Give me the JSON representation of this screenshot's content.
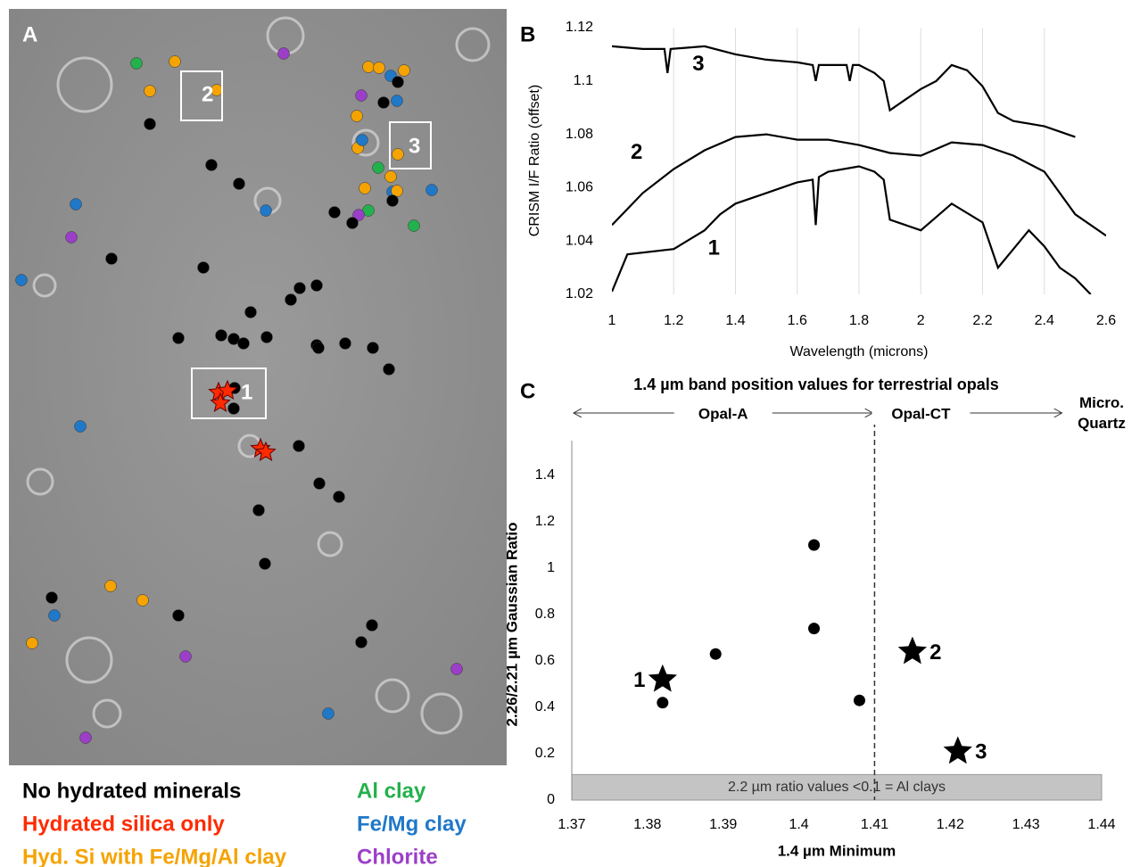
{
  "panel_a": {
    "label": "A",
    "box_labels": [
      "1",
      "2",
      "3"
    ],
    "legend": [
      {
        "label": "No hydrated minerals",
        "color": "#000000"
      },
      {
        "label": "Hydrated silica only",
        "color": "#ff2a00"
      },
      {
        "label": "Hyd. Si with Fe/Mg/Al clay",
        "color": "#f5a300"
      },
      {
        "label": "Al clay",
        "color": "#22b14c"
      },
      {
        "label": "Fe/Mg clay",
        "color": "#1f78c8"
      },
      {
        "label": "Chlorite",
        "color": "#9b3fc8"
      }
    ]
  },
  "chart_data": [
    {
      "type": "line",
      "panel_label": "B",
      "x_label": "Wavelength (microns)",
      "y_label": "CRISM I/F Ratio (offset)",
      "xlim": [
        1,
        2.6
      ],
      "ylim": [
        1.02,
        1.12
      ],
      "xticks": [
        1,
        1.2,
        1.4,
        1.6,
        1.8,
        2,
        2.2,
        2.4,
        2.6
      ],
      "yticks": [
        1.02,
        1.04,
        1.06,
        1.08,
        1.1,
        1.12
      ],
      "grid": "x",
      "series": [
        {
          "name": "1",
          "color": "#000000",
          "label_x": 1.33,
          "label_y": 1.037,
          "x": [
            1.0,
            1.05,
            1.2,
            1.3,
            1.35,
            1.4,
            1.5,
            1.6,
            1.65,
            1.66,
            1.67,
            1.7,
            1.8,
            1.85,
            1.88,
            1.9,
            2.0,
            2.05,
            2.1,
            2.2,
            2.25,
            2.3,
            2.35,
            2.4,
            2.45,
            2.5,
            2.55
          ],
          "values": [
            1.021,
            1.035,
            1.037,
            1.044,
            1.05,
            1.054,
            1.058,
            1.062,
            1.063,
            1.046,
            1.064,
            1.066,
            1.068,
            1.066,
            1.063,
            1.048,
            1.044,
            1.049,
            1.054,
            1.047,
            1.03,
            1.037,
            1.044,
            1.038,
            1.03,
            1.026,
            1.02
          ]
        },
        {
          "name": "2",
          "color": "#000000",
          "label_x": 1.08,
          "label_y": 1.073,
          "x": [
            1.0,
            1.1,
            1.2,
            1.3,
            1.4,
            1.5,
            1.6,
            1.7,
            1.8,
            1.9,
            2.0,
            2.1,
            2.2,
            2.3,
            2.4,
            2.5,
            2.6
          ],
          "values": [
            1.046,
            1.058,
            1.067,
            1.074,
            1.079,
            1.08,
            1.078,
            1.078,
            1.076,
            1.073,
            1.072,
            1.077,
            1.076,
            1.072,
            1.066,
            1.05,
            1.042
          ]
        },
        {
          "name": "3",
          "color": "#000000",
          "label_x": 1.28,
          "label_y": 1.106,
          "x": [
            1.0,
            1.1,
            1.17,
            1.18,
            1.19,
            1.3,
            1.4,
            1.5,
            1.6,
            1.65,
            1.66,
            1.67,
            1.7,
            1.76,
            1.77,
            1.78,
            1.8,
            1.85,
            1.88,
            1.9,
            1.95,
            2.0,
            2.05,
            2.1,
            2.15,
            2.2,
            2.25,
            2.3,
            2.35,
            2.4,
            2.45,
            2.5
          ],
          "values": [
            1.113,
            1.112,
            1.112,
            1.103,
            1.112,
            1.113,
            1.11,
            1.108,
            1.107,
            1.106,
            1.1,
            1.106,
            1.106,
            1.106,
            1.1,
            1.106,
            1.106,
            1.103,
            1.1,
            1.089,
            1.093,
            1.097,
            1.1,
            1.106,
            1.104,
            1.098,
            1.088,
            1.085,
            1.084,
            1.083,
            1.081,
            1.079
          ]
        }
      ]
    },
    {
      "type": "scatter",
      "panel_label": "C",
      "title": "1.4 µm band position values for terrestrial opals",
      "x_label": "1.4 µm Minimum",
      "y_label": "2.26/2.21 µm Gaussian Ratio",
      "xlim": [
        1.37,
        1.44
      ],
      "ylim": [
        0,
        1.55
      ],
      "xticks": [
        1.37,
        1.38,
        1.39,
        1.4,
        1.41,
        1.42,
        1.43,
        1.44
      ],
      "yticks": [
        0,
        0.2,
        0.4,
        0.6,
        0.8,
        1,
        1.2,
        1.4
      ],
      "divider_x": 1.41,
      "band": {
        "y": [
          0,
          0.11
        ],
        "label": "2.2 µm ratio values <0.1 = Al clays"
      },
      "ranges": [
        {
          "label": "Opal-A",
          "from": 1.37,
          "to": 1.41
        },
        {
          "label": "Opal-CT",
          "from": 1.41,
          "to": 1.435
        }
      ],
      "range_end_label": "Micro. Quartz",
      "series": [
        {
          "marker": "circle",
          "color": "#000000",
          "x": [
            1.382,
            1.389,
            1.402,
            1.402,
            1.408
          ],
          "values": [
            0.42,
            0.63,
            1.1,
            0.74,
            0.43
          ]
        },
        {
          "marker": "star",
          "color": "#000000",
          "x": [
            1.382,
            1.415,
            1.421
          ],
          "values": [
            0.52,
            0.64,
            0.21
          ],
          "point_labels": [
            "1",
            "2",
            "3"
          ]
        }
      ]
    }
  ]
}
